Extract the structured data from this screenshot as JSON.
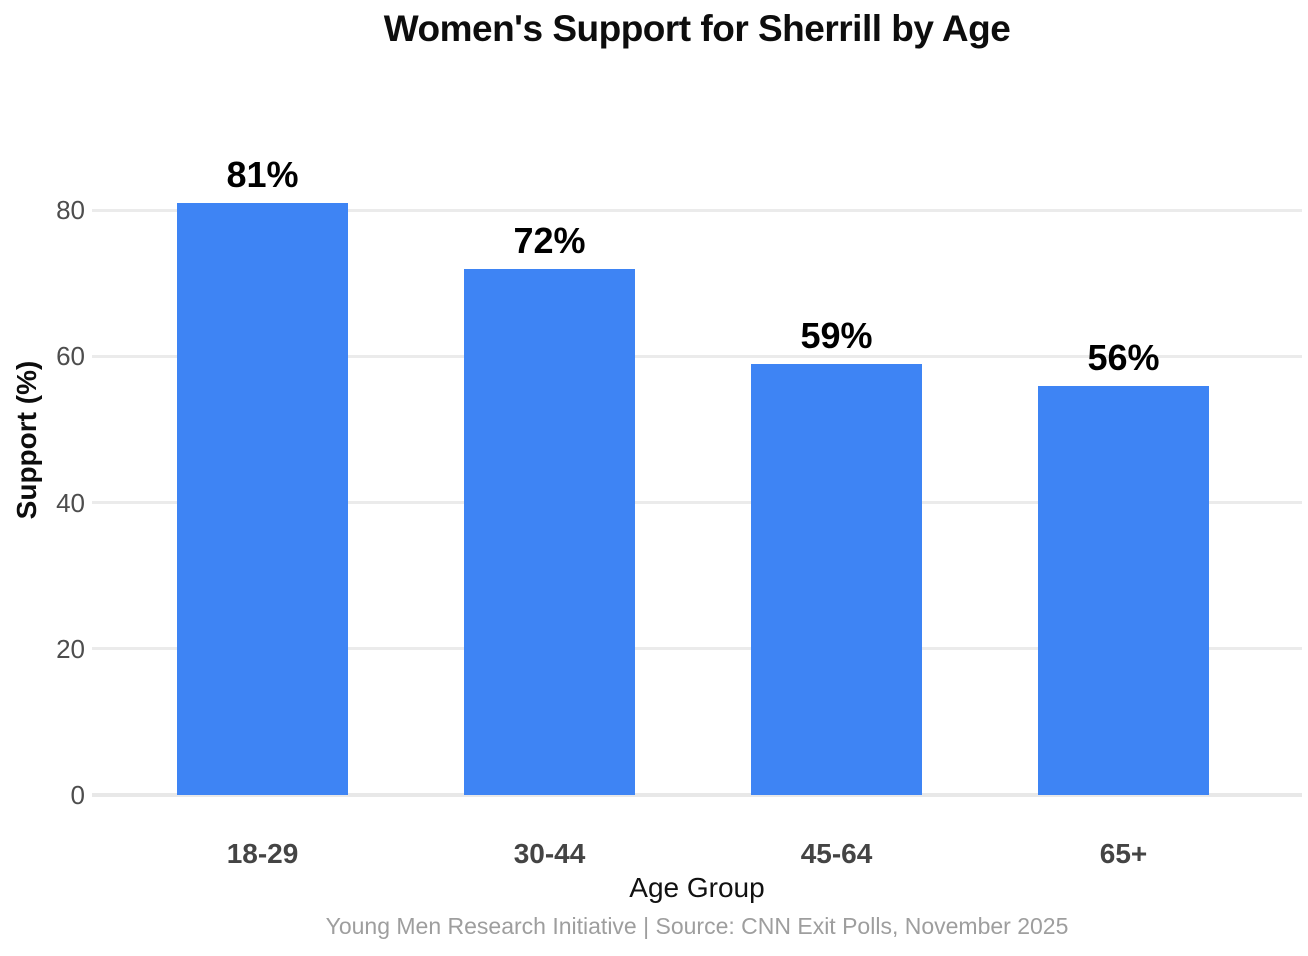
{
  "chart_data": {
    "type": "bar",
    "title": "Women's Support for Sherrill by Age",
    "categories": [
      "18-29",
      "30-44",
      "45-64",
      "65+"
    ],
    "values": [
      81,
      72,
      59,
      56
    ],
    "value_labels": [
      "81%",
      "72%",
      "59%",
      "56%"
    ],
    "xlabel": "Age Group",
    "ylabel": "Support (%)",
    "yticks": [
      0,
      20,
      40,
      60,
      80
    ],
    "ylim": [
      0,
      95
    ],
    "grid": "horizontal",
    "legend": "none",
    "caption": "Young Men Research Initiative | Source: CNN Exit Polls, November 2025"
  },
  "colors": {
    "bar": "#3e84f4",
    "gridline": "#ebebeb",
    "zero_line": "#e8e8e8",
    "y_tick_text": "#4d4d4d",
    "x_tick_text": "#444444",
    "title_text": "#0d0d0d",
    "caption_text": "#9e9e9e",
    "background": "#ffffff"
  }
}
